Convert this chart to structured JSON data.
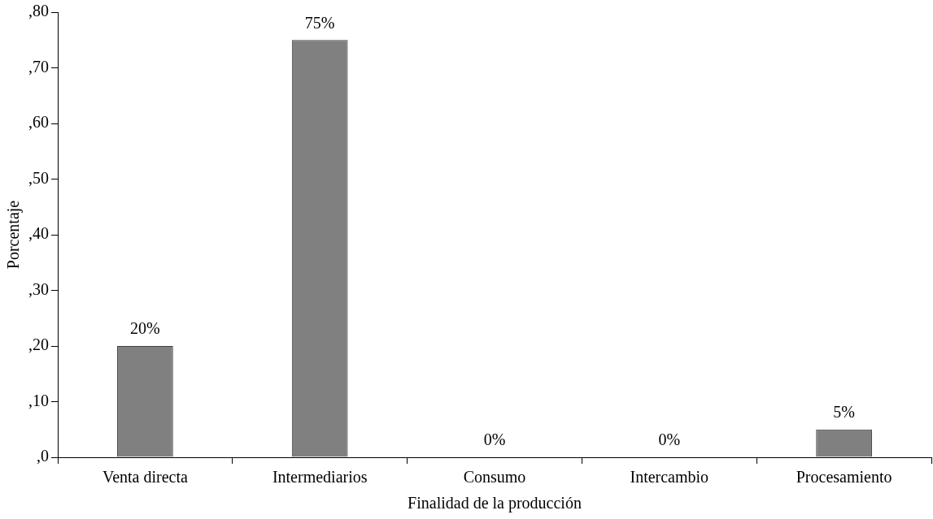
{
  "chart_data": {
    "type": "bar",
    "xlabel": "Finalidad de la producción",
    "ylabel": "Porcentaje",
    "categories": [
      "Venta directa",
      "Intermediarios",
      "Consumo",
      "Intercambio",
      "Procesamiento"
    ],
    "values": [
      20,
      75,
      0,
      0,
      5
    ],
    "value_labels": [
      "20%",
      "75%",
      "0%",
      "0%",
      "5%"
    ],
    "color": "#808080",
    "ylim": [
      0,
      80
    ],
    "yticks": [
      {
        "value": 0,
        "label": ",0"
      },
      {
        "value": 10,
        "label": ",10"
      },
      {
        "value": 20,
        "label": ",20"
      },
      {
        "value": 30,
        "label": ",30"
      },
      {
        "value": 40,
        "label": ",40"
      },
      {
        "value": 50,
        "label": ",50"
      },
      {
        "value": 60,
        "label": ",60"
      },
      {
        "value": 70,
        "label": ",70"
      },
      {
        "value": 80,
        "label": ",80"
      }
    ],
    "grid": false,
    "legend": false
  }
}
